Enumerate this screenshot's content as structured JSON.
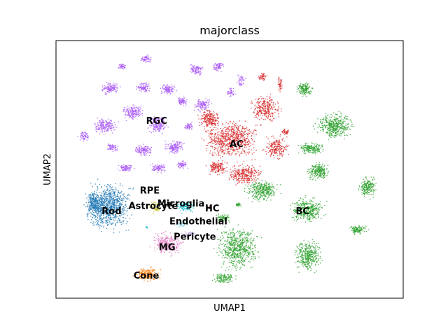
{
  "chart_data": {
    "type": "scatter",
    "title": "majorclass",
    "xlabel": "UMAP1",
    "ylabel": "UMAP2",
    "grid": false,
    "legend": "on data",
    "xlim": [
      0,
      100
    ],
    "ylim": [
      0,
      100
    ],
    "clusters": [
      {
        "name": "RGC",
        "color": "#a855f7",
        "centroid": [
          29,
          69
        ]
      },
      {
        "name": "AC",
        "color": "#d62728",
        "centroid": [
          52,
          60
        ]
      },
      {
        "name": "BC",
        "color": "#2ca02c",
        "centroid": [
          71,
          34
        ]
      },
      {
        "name": "Rod",
        "color": "#1f77b4",
        "centroid": [
          16,
          34
        ]
      },
      {
        "name": "RPE",
        "color": "#17becf",
        "centroid": [
          27,
          42
        ]
      },
      {
        "name": "Astrocyte",
        "color": "#bcbd22",
        "centroid": [
          28,
          36
        ]
      },
      {
        "name": "Microglia",
        "color": "#7f7f7f",
        "centroid": [
          36,
          37
        ]
      },
      {
        "name": "HC",
        "color": "#8c564b",
        "centroid": [
          45,
          35
        ]
      },
      {
        "name": "Endothelial",
        "color": "#9edae5",
        "centroid": [
          41,
          30
        ]
      },
      {
        "name": "Pericyte",
        "color": "#c5b0d5",
        "centroid": [
          40,
          24
        ]
      },
      {
        "name": "MG",
        "color": "#e377c2",
        "centroid": [
          32,
          20
        ]
      },
      {
        "name": "Cone",
        "color": "#ff7f0e",
        "centroid": [
          26,
          9
        ]
      }
    ]
  }
}
